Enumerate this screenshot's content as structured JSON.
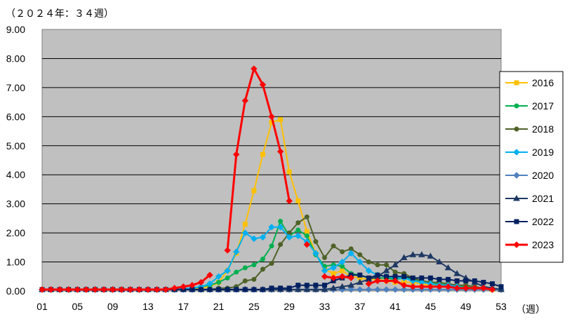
{
  "chart_data": {
    "type": "line",
    "title": "（２０２４年：３４週）",
    "xlabel": "（週）",
    "ylabel": "",
    "ylim": [
      0,
      9
    ],
    "yticks": [
      "0.00",
      "1.00",
      "2.00",
      "3.00",
      "4.00",
      "5.00",
      "6.00",
      "7.00",
      "8.00",
      "9.00"
    ],
    "xticks": [
      "01",
      "05",
      "09",
      "13",
      "17",
      "21",
      "25",
      "29",
      "33",
      "37",
      "41",
      "45",
      "49",
      "53"
    ],
    "x": [
      1,
      2,
      3,
      4,
      5,
      6,
      7,
      8,
      9,
      10,
      11,
      12,
      13,
      14,
      15,
      16,
      17,
      18,
      19,
      20,
      21,
      22,
      23,
      24,
      25,
      26,
      27,
      28,
      29,
      30,
      31,
      32,
      33,
      34,
      35,
      36,
      37,
      38,
      39,
      40,
      41,
      42,
      43,
      44,
      45,
      46,
      47,
      48,
      49,
      50,
      51,
      52,
      53
    ],
    "plot_background": "#c0c0c0",
    "grid": true,
    "legend_position": "right",
    "series": [
      {
        "name": "2016",
        "color": "#ffc000",
        "marker": "square",
        "values": [
          0.05,
          0.05,
          0.05,
          0.05,
          0.05,
          0.05,
          0.05,
          0.05,
          0.05,
          0.05,
          0.05,
          0.05,
          0.05,
          0.05,
          0.05,
          0.05,
          0.05,
          0.08,
          0.1,
          0.15,
          0.3,
          0.7,
          1.3,
          2.3,
          3.45,
          4.7,
          5.8,
          5.9,
          4.1,
          3.1,
          2.05,
          1.3,
          0.75,
          0.6,
          0.7,
          0.5,
          0.45,
          0.4,
          0.4,
          0.35,
          0.3,
          0.3,
          0.3,
          0.25,
          0.2,
          0.2,
          0.15,
          0.15,
          0.1,
          0.1,
          0.08,
          0.05,
          0.05
        ]
      },
      {
        "name": "2017",
        "color": "#00b050",
        "marker": "circle",
        "values": [
          0.05,
          0.05,
          0.05,
          0.05,
          0.05,
          0.05,
          0.05,
          0.05,
          0.05,
          0.05,
          0.05,
          0.05,
          0.05,
          0.05,
          0.05,
          0.05,
          0.05,
          0.1,
          0.15,
          0.2,
          0.3,
          0.45,
          0.65,
          0.8,
          0.9,
          1.1,
          1.55,
          2.4,
          1.9,
          2.1,
          1.9,
          1.25,
          0.85,
          0.9,
          0.85,
          0.6,
          0.55,
          0.45,
          0.45,
          0.45,
          0.4,
          0.45,
          0.4,
          0.35,
          0.3,
          0.25,
          0.2,
          0.15,
          0.15,
          0.1,
          0.08,
          0.05,
          0.05
        ]
      },
      {
        "name": "2018",
        "color": "#4f6228",
        "marker": "circle",
        "values": [
          0.05,
          0.05,
          0.05,
          0.05,
          0.05,
          0.05,
          0.05,
          0.05,
          0.05,
          0.05,
          0.05,
          0.05,
          0.05,
          0.05,
          0.05,
          0.05,
          0.05,
          0.05,
          0.05,
          0.05,
          0.1,
          0.1,
          0.15,
          0.35,
          0.4,
          0.75,
          0.95,
          1.6,
          2.0,
          2.35,
          2.55,
          1.7,
          1.15,
          1.55,
          1.35,
          1.45,
          1.25,
          1.0,
          0.9,
          0.9,
          0.65,
          0.6,
          0.45,
          0.35,
          0.3,
          0.3,
          0.25,
          0.2,
          0.2,
          0.15,
          0.1,
          0.08,
          0.05
        ]
      },
      {
        "name": "2019",
        "color": "#00b0f0",
        "marker": "diamond",
        "values": [
          0.05,
          0.05,
          0.05,
          0.05,
          0.05,
          0.05,
          0.05,
          0.05,
          0.05,
          0.05,
          0.05,
          0.05,
          0.05,
          0.05,
          0.05,
          0.05,
          0.08,
          0.1,
          0.15,
          0.25,
          0.5,
          0.7,
          1.35,
          2.0,
          1.8,
          1.85,
          2.2,
          2.2,
          1.85,
          1.9,
          1.7,
          1.3,
          0.7,
          0.8,
          1.0,
          1.3,
          1.0,
          0.7,
          0.55,
          0.5,
          0.45,
          0.45,
          0.35,
          0.3,
          0.25,
          0.2,
          0.2,
          0.15,
          0.1,
          0.1,
          0.05,
          0.05,
          0.05
        ]
      },
      {
        "name": "2020",
        "color": "#4f81bd",
        "marker": "diamond",
        "values": [
          0.05,
          0.05,
          0.05,
          0.05,
          0.05,
          0.05,
          0.05,
          0.05,
          0.05,
          0.05,
          0.05,
          0.05,
          0.05,
          0.05,
          0.05,
          0.05,
          0.05,
          0.05,
          0.05,
          0.05,
          0.05,
          0.05,
          0.05,
          0.05,
          0.05,
          0.05,
          0.05,
          0.05,
          0.05,
          0.05,
          0.05,
          0.05,
          0.05,
          0.05,
          0.05,
          0.05,
          0.05,
          0.05,
          0.05,
          0.05,
          0.05,
          0.05,
          0.05,
          0.05,
          0.05,
          0.05,
          0.05,
          0.05,
          0.05,
          0.05,
          0.05,
          0.05,
          0.05
        ]
      },
      {
        "name": "2021",
        "color": "#1f3864",
        "marker": "triangle",
        "values": [
          0.05,
          0.05,
          0.05,
          0.05,
          0.05,
          0.05,
          0.05,
          0.05,
          0.05,
          0.05,
          0.05,
          0.05,
          0.05,
          0.05,
          0.05,
          0.05,
          0.05,
          0.05,
          0.05,
          0.05,
          0.05,
          0.05,
          0.05,
          0.05,
          0.05,
          0.05,
          0.05,
          0.05,
          0.05,
          0.05,
          0.05,
          0.05,
          0.05,
          0.1,
          0.15,
          0.2,
          0.3,
          0.4,
          0.5,
          0.7,
          0.9,
          1.15,
          1.25,
          1.25,
          1.2,
          1.0,
          0.8,
          0.6,
          0.45,
          0.3,
          0.15,
          0.1,
          0.05
        ]
      },
      {
        "name": "2022",
        "color": "#002060",
        "marker": "square",
        "values": [
          0.05,
          0.05,
          0.05,
          0.05,
          0.05,
          0.05,
          0.05,
          0.05,
          0.05,
          0.05,
          0.05,
          0.05,
          0.05,
          0.05,
          0.05,
          0.05,
          0.05,
          0.05,
          0.05,
          0.05,
          0.05,
          0.05,
          0.05,
          0.05,
          0.05,
          0.05,
          0.1,
          0.1,
          0.1,
          0.2,
          0.2,
          0.2,
          0.2,
          0.35,
          0.45,
          0.55,
          0.55,
          0.45,
          0.55,
          0.5,
          0.5,
          0.5,
          0.45,
          0.45,
          0.45,
          0.4,
          0.4,
          0.35,
          0.35,
          0.35,
          0.3,
          0.25,
          0.15
        ]
      },
      {
        "name": "2023",
        "color": "#ff0000",
        "marker": "diamond",
        "values": [
          0.05,
          0.05,
          0.05,
          0.05,
          0.05,
          0.05,
          0.05,
          0.05,
          0.05,
          0.05,
          0.05,
          0.05,
          0.05,
          0.05,
          0.05,
          0.1,
          0.15,
          0.2,
          0.3,
          0.55,
          null,
          1.4,
          4.7,
          6.55,
          7.65,
          7.1,
          6.0,
          4.8,
          3.1,
          null,
          1.6,
          null,
          0.5,
          0.45,
          0.5,
          0.45,
          null,
          0.25,
          0.35,
          0.35,
          0.35,
          0.2,
          0.15,
          0.15,
          0.15,
          0.15,
          0.15,
          0.1,
          0.1,
          0.1,
          0.1,
          0.05,
          null
        ]
      }
    ]
  }
}
